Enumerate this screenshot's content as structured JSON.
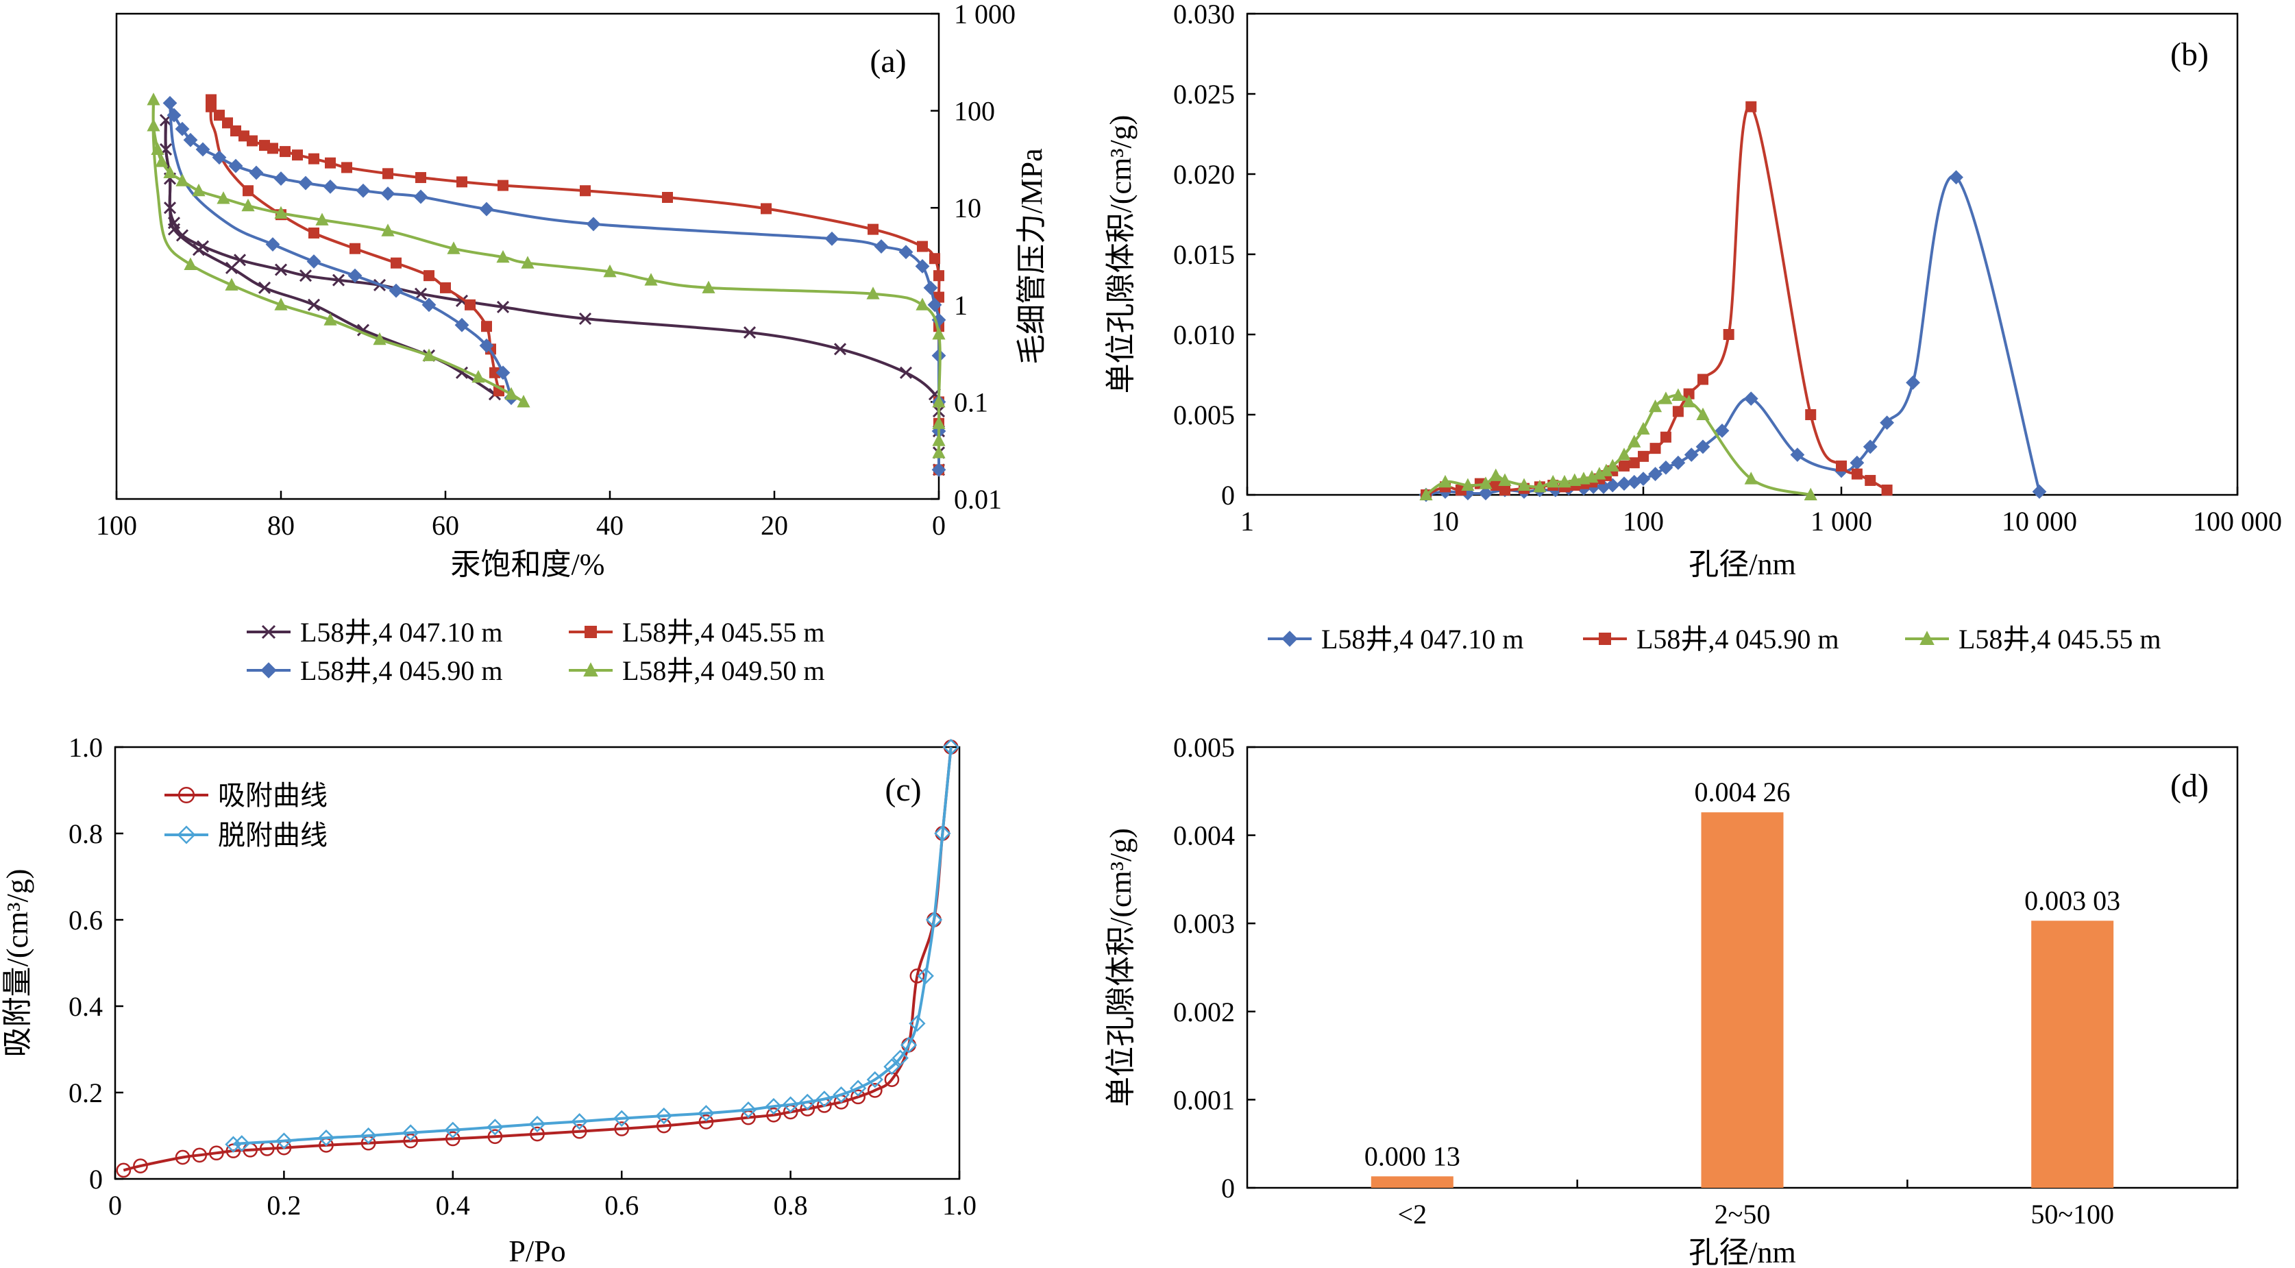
{
  "chart_data": [
    {
      "panel": "(a)",
      "type": "line",
      "xlabel": "汞饱和度/%",
      "ylabel": "毛细管压力/MPa",
      "xlim": [
        100,
        0
      ],
      "x_reversed": true,
      "ylim": [
        0.01,
        1000
      ],
      "y_scale": "log",
      "y_axis_side": "right",
      "x_ticks": [
        "100",
        "80",
        "60",
        "40",
        "20",
        "0"
      ],
      "y_ticks": [
        "0.01",
        "0.1",
        "1",
        "10",
        "100",
        "1 000"
      ],
      "legend_position": "bottom",
      "series": [
        {
          "name": "L58井,4 047.10 m",
          "color": "#4a2a4a",
          "marker": "x",
          "x": [
            94,
            94,
            93.5,
            93.5,
            93,
            92,
            89.5,
            85,
            80,
            77,
            73,
            68,
            63,
            58,
            53,
            43,
            23,
            12,
            4,
            0.5,
            0,
            0,
            0,
            0
          ],
          "y": [
            80,
            40,
            20,
            10,
            7,
            5.2,
            4,
            2.9,
            2.3,
            2,
            1.8,
            1.6,
            1.3,
            1.1,
            0.95,
            0.72,
            0.52,
            0.35,
            0.2,
            0.12,
            0.08,
            0.05,
            0.03,
            0.02
          ],
          "x_dep": [
            94,
            94,
            93.5,
            93.5,
            93,
            90,
            86,
            82,
            76,
            70,
            62,
            58,
            54
          ],
          "y_dep": [
            80,
            40,
            20,
            10,
            6,
            3.7,
            2.4,
            1.5,
            1.0,
            0.55,
            0.3,
            0.2,
            0.12
          ]
        },
        {
          "name": "L58井,4 045.55 m",
          "color": "#c0392b",
          "marker": "square",
          "x": [
            88.5,
            88.5,
            87.5,
            86.5,
            85.5,
            84.5,
            83.5,
            82,
            81,
            79.5,
            78,
            76,
            74,
            72,
            67,
            63,
            58,
            53,
            43,
            33,
            21,
            8,
            2,
            0.5,
            0,
            0,
            0,
            0,
            0,
            0
          ],
          "y": [
            130,
            110,
            90,
            75,
            62,
            55,
            49,
            44,
            41,
            38,
            35,
            32,
            29,
            26,
            22.5,
            20.5,
            18.5,
            17,
            15,
            12.8,
            9.8,
            6,
            4,
            3,
            2,
            1.2,
            0.6,
            0.1,
            0.06,
            0.02
          ],
          "x_dep": [
            88.5,
            88.5,
            88,
            87,
            84,
            80,
            76,
            71,
            66,
            62,
            60,
            57,
            55,
            54.5,
            54,
            53.5
          ],
          "y_dep": [
            130,
            80,
            60,
            30,
            15,
            8.5,
            5.5,
            3.8,
            2.7,
            2.0,
            1.5,
            1.0,
            0.6,
            0.35,
            0.2,
            0.13
          ]
        },
        {
          "name": "L58井,4 045.90 m",
          "color": "#4a6fb5",
          "marker": "diamond",
          "x": [
            93.5,
            93,
            92,
            91,
            89.5,
            87.5,
            85.5,
            83,
            80,
            77,
            74,
            70,
            67,
            63,
            55,
            42,
            13,
            7,
            4,
            2,
            1,
            0.5,
            0,
            0,
            0,
            0,
            0
          ],
          "y": [
            120,
            90,
            65,
            50,
            40,
            33,
            27,
            23,
            20,
            18,
            16.5,
            15,
            14,
            13,
            9.7,
            6.8,
            4.8,
            4,
            3.5,
            2.5,
            1.5,
            1,
            0.7,
            0.3,
            0.1,
            0.05,
            0.02
          ],
          "x_dep": [
            93.5,
            93,
            91,
            86,
            81,
            76,
            71,
            66,
            62,
            58,
            55,
            53,
            52
          ],
          "y_dep": [
            120,
            40,
            15,
            6.5,
            4.2,
            2.8,
            2.0,
            1.4,
            1.0,
            0.62,
            0.38,
            0.2,
            0.11
          ]
        },
        {
          "name": "L58井,4 049.50 m",
          "color": "#8ab34a",
          "marker": "triangle",
          "x": [
            95.5,
            95.5,
            95,
            94.5,
            93.5,
            92,
            90,
            87,
            84,
            80,
            75,
            67,
            59,
            53,
            50,
            40,
            35,
            28,
            8,
            2,
            0,
            0,
            0,
            0,
            0
          ],
          "y": [
            130,
            70,
            40,
            30,
            23,
            19,
            15,
            12.5,
            10.5,
            8.8,
            7.5,
            5.8,
            3.8,
            3.1,
            2.7,
            2.2,
            1.8,
            1.5,
            1.3,
            1.0,
            0.5,
            0.1,
            0.06,
            0.04,
            0.03
          ],
          "x_dep": [
            95.5,
            95.5,
            95,
            94,
            91,
            86,
            80,
            74,
            68,
            62,
            56,
            52,
            50.5
          ],
          "y_dep": [
            130,
            50,
            15,
            4.5,
            2.6,
            1.6,
            1.0,
            0.7,
            0.44,
            0.3,
            0.18,
            0.12,
            0.1
          ]
        }
      ]
    },
    {
      "panel": "(b)",
      "type": "line",
      "xlabel": "孔径/nm",
      "ylabel": "单位孔隙体积/(cm³/g)",
      "x_scale": "log",
      "xlim": [
        1,
        100000
      ],
      "ylim": [
        0,
        0.03
      ],
      "x_ticks": [
        "1",
        "10",
        "100",
        "1 000",
        "10 000",
        "100 000"
      ],
      "y_ticks": [
        "0",
        "0.005",
        "0.010",
        "0.015",
        "0.020",
        "0.025",
        "0.030"
      ],
      "legend_position": "bottom",
      "series": [
        {
          "name": "L58井,4 047.10 m",
          "color": "#4a6fb5",
          "marker": "diamond",
          "x": [
            8,
            10,
            13,
            16,
            20,
            25,
            30,
            36,
            42,
            50,
            56,
            63,
            70,
            80,
            90,
            100,
            115,
            130,
            150,
            175,
            200,
            250,
            350,
            600,
            1000,
            1200,
            1400,
            1700,
            2300,
            3800,
            10000
          ],
          "y": [
            0,
            0.0002,
            0.0001,
            0.0001,
            0.0003,
            0.0002,
            0.0003,
            0.0003,
            0.0004,
            0.0004,
            0.0005,
            0.0005,
            0.0006,
            0.0007,
            0.0008,
            0.001,
            0.0013,
            0.0017,
            0.002,
            0.0025,
            0.003,
            0.004,
            0.006,
            0.0025,
            0.0015,
            0.002,
            0.003,
            0.0045,
            0.007,
            0.0198,
            0.0002
          ]
        },
        {
          "name": "L58井,4 045.90 m",
          "color": "#c0392b",
          "marker": "square",
          "x": [
            8,
            10,
            12,
            15,
            18,
            20,
            25,
            30,
            35,
            40,
            45,
            50,
            55,
            60,
            65,
            70,
            80,
            90,
            100,
            115,
            130,
            150,
            170,
            200,
            270,
            350,
            700,
            1000,
            1200,
            1400,
            1700
          ],
          "y": [
            0,
            0.0005,
            0.0003,
            0.0007,
            0.0006,
            0.0003,
            0.0004,
            0.0005,
            0.0006,
            0.0005,
            0.0006,
            0.0007,
            0.0008,
            0.001,
            0.0012,
            0.0015,
            0.0018,
            0.002,
            0.0024,
            0.0029,
            0.0036,
            0.0052,
            0.0063,
            0.0072,
            0.01,
            0.0242,
            0.005,
            0.0018,
            0.0013,
            0.0009,
            0.0003
          ]
        },
        {
          "name": "L58井,4 045.55 m",
          "color": "#8ab34a",
          "marker": "triangle",
          "x": [
            8,
            10,
            13,
            16,
            18,
            20,
            25,
            30,
            35,
            40,
            45,
            50,
            55,
            60,
            65,
            70,
            80,
            90,
            100,
            115,
            130,
            150,
            170,
            200,
            350,
            700
          ],
          "y": [
            0,
            0.0008,
            0.0006,
            0.0007,
            0.0012,
            0.0009,
            0.0006,
            0.0005,
            0.0008,
            0.0008,
            0.0009,
            0.001,
            0.0011,
            0.0013,
            0.0015,
            0.0018,
            0.0025,
            0.0033,
            0.0041,
            0.0055,
            0.006,
            0.0062,
            0.0058,
            0.005,
            0.001,
            0
          ]
        }
      ]
    },
    {
      "panel": "(c)",
      "type": "line",
      "xlabel": "P/Po",
      "ylabel": "吸附量/(cm³/g)",
      "xlim": [
        0,
        1.0
      ],
      "ylim": [
        0,
        1.0
      ],
      "x_ticks": [
        "0",
        "0.2",
        "0.4",
        "0.6",
        "0.8",
        "1.0"
      ],
      "y_ticks": [
        "0",
        "0.2",
        "0.4",
        "0.6",
        "0.8",
        "1.0"
      ],
      "legend_position": "top-left",
      "series": [
        {
          "name": "吸附曲线",
          "color": "#b22222",
          "marker": "circle",
          "x": [
            0.01,
            0.03,
            0.08,
            0.1,
            0.12,
            0.14,
            0.16,
            0.18,
            0.2,
            0.25,
            0.3,
            0.35,
            0.4,
            0.45,
            0.5,
            0.55,
            0.6,
            0.65,
            0.7,
            0.75,
            0.78,
            0.8,
            0.82,
            0.84,
            0.86,
            0.88,
            0.9,
            0.92,
            0.94,
            0.95,
            0.97,
            0.98,
            0.99
          ],
          "y": [
            0.02,
            0.03,
            0.05,
            0.055,
            0.06,
            0.065,
            0.067,
            0.07,
            0.072,
            0.078,
            0.083,
            0.088,
            0.093,
            0.098,
            0.104,
            0.11,
            0.116,
            0.123,
            0.132,
            0.142,
            0.148,
            0.155,
            0.162,
            0.17,
            0.178,
            0.19,
            0.205,
            0.23,
            0.31,
            0.47,
            0.6,
            0.8,
            1.0
          ]
        },
        {
          "name": "脱附曲线",
          "color": "#4aa3d6",
          "marker": "diamond",
          "x": [
            0.99,
            0.98,
            0.97,
            0.96,
            0.95,
            0.94,
            0.93,
            0.92,
            0.9,
            0.88,
            0.86,
            0.84,
            0.82,
            0.8,
            0.78,
            0.75,
            0.7,
            0.65,
            0.6,
            0.55,
            0.5,
            0.45,
            0.4,
            0.35,
            0.3,
            0.25,
            0.2,
            0.15,
            0.14
          ],
          "y": [
            1.0,
            0.8,
            0.6,
            0.47,
            0.36,
            0.31,
            0.28,
            0.26,
            0.23,
            0.21,
            0.195,
            0.185,
            0.178,
            0.172,
            0.168,
            0.16,
            0.152,
            0.146,
            0.14,
            0.133,
            0.127,
            0.12,
            0.113,
            0.107,
            0.1,
            0.095,
            0.088,
            0.082,
            0.08
          ]
        }
      ]
    },
    {
      "panel": "(d)",
      "type": "bar",
      "xlabel": "孔径/nm",
      "ylabel": "单位孔隙体积/(cm³/g)",
      "ylim": [
        0,
        0.005
      ],
      "y_ticks": [
        "0",
        "0.001",
        "0.002",
        "0.003",
        "0.004",
        "0.005"
      ],
      "categories": [
        "<2",
        "2~50",
        "50~100"
      ],
      "values": [
        0.00013,
        0.00426,
        0.00303
      ],
      "value_labels": [
        "0.000 13",
        "0.004 26",
        "0.003 03"
      ],
      "bar_color": "#f0894a"
    }
  ]
}
